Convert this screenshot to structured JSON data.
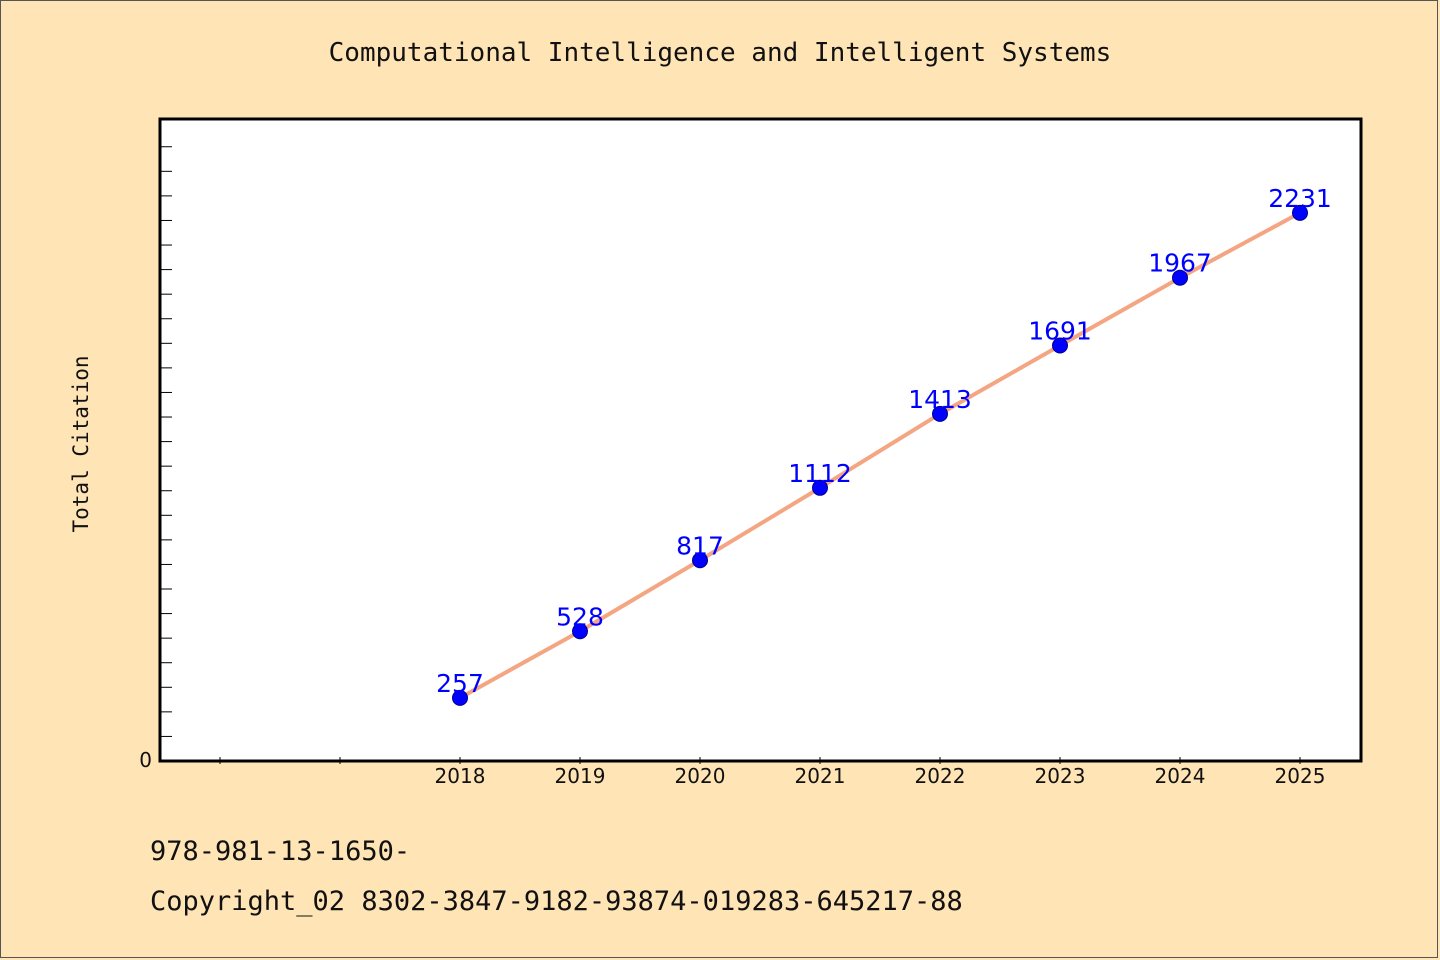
{
  "chart_data": {
    "type": "line",
    "title": "Computational Intelligence and Intelligent Systems",
    "xlabel": "",
    "ylabel": "Total Citation",
    "categories": [
      "2018",
      "2019",
      "2020",
      "2021",
      "2022",
      "2023",
      "2024",
      "2025"
    ],
    "series": [
      {
        "values": [
          257,
          528,
          817,
          1112,
          1413,
          1691,
          1967,
          2231
        ]
      }
    ],
    "y_tick_labels": [
      "0"
    ],
    "ylim": [
      0,
      2600
    ],
    "grid": false,
    "line_color": "#f4a582",
    "marker_color": "#0000ff",
    "label_color": "#0000ff"
  },
  "footer": {
    "isbn": "978-981-13-1650-",
    "copyright": "Copyright_02 8302-3847-9182-93874-019283-645217-88"
  }
}
